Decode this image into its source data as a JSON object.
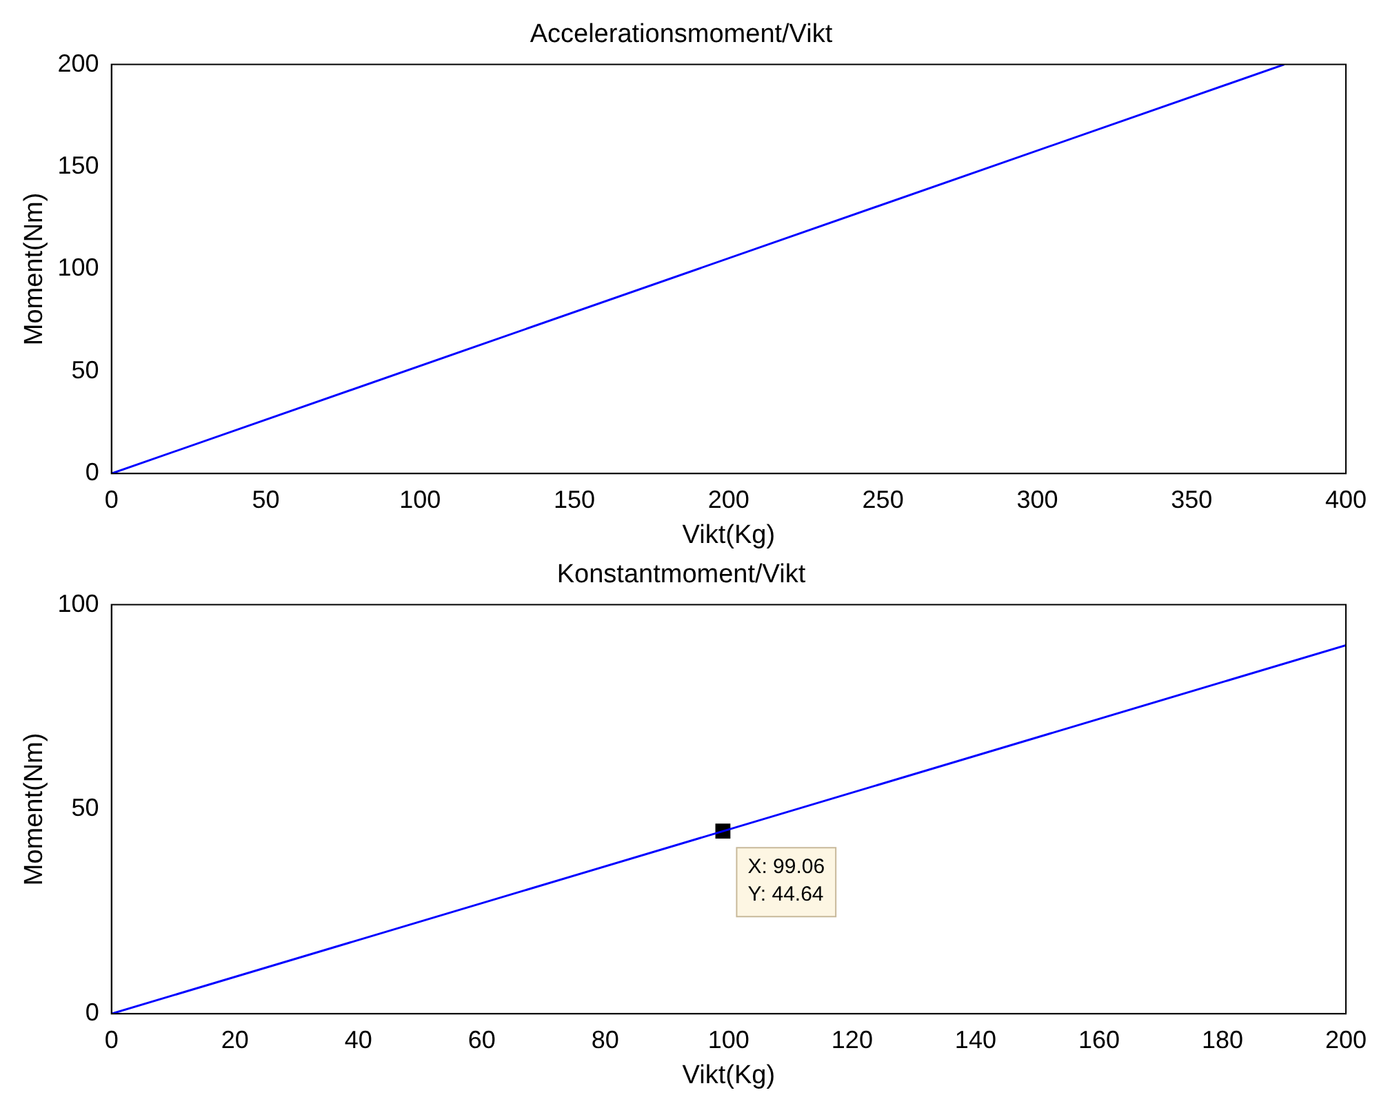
{
  "chart_data": [
    {
      "type": "line",
      "title": "Accelerationsmoment/Vikt",
      "xlabel": "Vikt(Kg)",
      "ylabel": "Moment(Nm)",
      "series": [
        {
          "x": [
            0,
            380
          ],
          "values": [
            0,
            200
          ],
          "color": "#0000ff"
        }
      ],
      "xlim": [
        0,
        400
      ],
      "xticks": [
        0,
        50,
        100,
        150,
        200,
        250,
        300,
        350,
        400
      ],
      "ylim": [
        0,
        200
      ],
      "yticks": [
        0,
        50,
        100,
        150,
        200
      ]
    },
    {
      "type": "line",
      "title": "Konstantmoment/Vikt",
      "xlabel": "Vikt(Kg)",
      "ylabel": "Moment(Nm)",
      "series": [
        {
          "x": [
            0,
            200
          ],
          "values": [
            0,
            90.1
          ],
          "color": "#0000ff"
        },
        {
          "type": "scatter",
          "x": [
            99.06
          ],
          "values": [
            44.64
          ],
          "color": "#000000",
          "marker": "square"
        }
      ],
      "xlim": [
        0,
        200
      ],
      "xticks": [
        0,
        20,
        40,
        60,
        80,
        100,
        120,
        140,
        160,
        180,
        200
      ],
      "ylim": [
        0,
        100
      ],
      "yticks": [
        0,
        50,
        100
      ],
      "annotations": [
        {
          "text": "X: 99.06\nY: 44.64",
          "x": 99.06,
          "y": 44.64
        }
      ]
    }
  ]
}
